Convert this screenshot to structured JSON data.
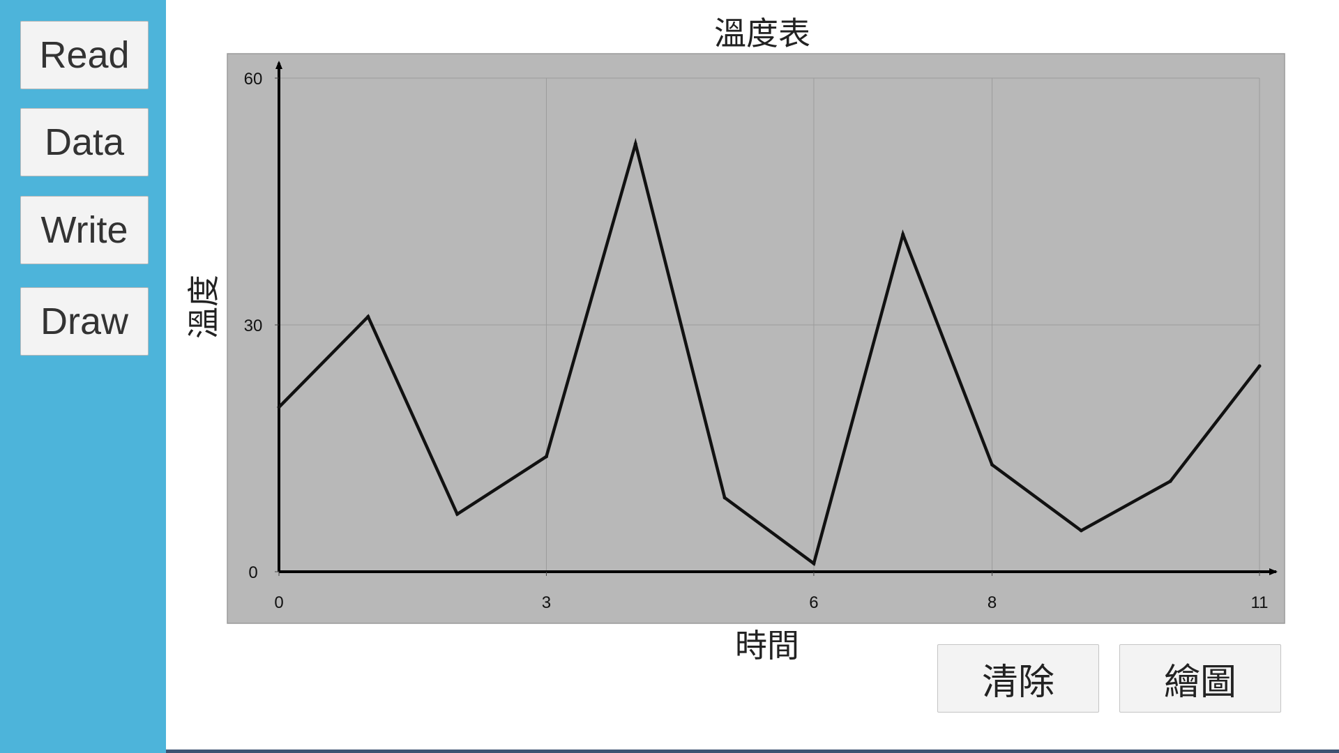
{
  "sidebar": {
    "buttons": [
      {
        "label": "Read"
      },
      {
        "label": "Data"
      },
      {
        "label": "Write"
      },
      {
        "label": "Draw"
      }
    ]
  },
  "actions": {
    "clear_label": "清除",
    "draw_label": "繪圖"
  },
  "colors": {
    "sidebar": "#4db4da",
    "plot_background": "#b8b8b8",
    "line": "#111111"
  },
  "chart_data": {
    "type": "line",
    "title": "溫度表",
    "xlabel": "時間",
    "ylabel": "溫度",
    "xlim": [
      0,
      11
    ],
    "ylim": [
      0,
      60
    ],
    "x_ticks": [
      0,
      3,
      6,
      8,
      11
    ],
    "y_ticks": [
      0,
      30,
      60
    ],
    "grid": true,
    "series": [
      {
        "x": [
          0,
          1,
          2,
          3,
          4,
          5,
          6,
          7,
          8,
          9,
          10,
          11
        ],
        "y": [
          20,
          31,
          7,
          14,
          52,
          9,
          1,
          41,
          13,
          5,
          11,
          25
        ]
      }
    ]
  }
}
